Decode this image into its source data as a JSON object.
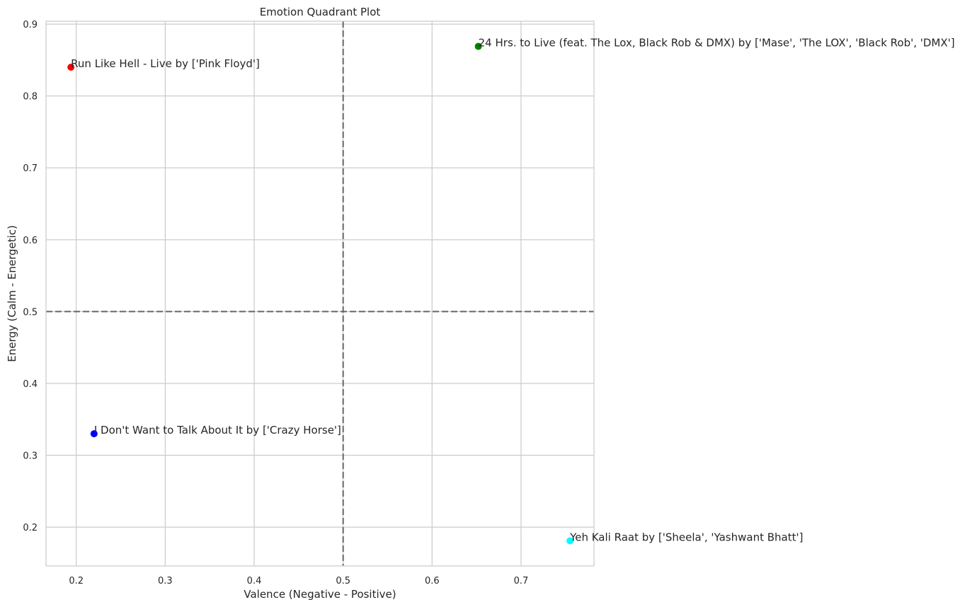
{
  "chart_data": {
    "type": "scatter",
    "title": "Emotion Quadrant Plot",
    "xlabel": "Valence (Negative - Positive)",
    "ylabel": "Energy (Calm - Energetic)",
    "xlim": [
      0.166,
      0.782
    ],
    "ylim": [
      0.146,
      0.904
    ],
    "xticks": [
      0.2,
      0.3,
      0.4,
      0.5,
      0.6,
      0.7
    ],
    "yticks": [
      0.2,
      0.3,
      0.4,
      0.5,
      0.6,
      0.7,
      0.8,
      0.9
    ],
    "grid": true,
    "reference_lines": {
      "x": 0.5,
      "y": 0.5,
      "style": "dashed",
      "color": "#666666"
    },
    "points": [
      {
        "x": 0.194,
        "y": 0.84,
        "color": "#ff0000",
        "label": "Run Like Hell - Live by ['Pink Floyd']"
      },
      {
        "x": 0.652,
        "y": 0.869,
        "color": "#008000",
        "label": "24 Hrs. to Live (feat. The Lox, Black Rob & DMX) by ['Mase', 'The LOX', 'Black Rob', 'DMX']"
      },
      {
        "x": 0.22,
        "y": 0.33,
        "color": "#0000ff",
        "label": "I Don't Want to Talk About It by ['Crazy Horse']"
      },
      {
        "x": 0.755,
        "y": 0.181,
        "color": "#00ffff",
        "label": "Yeh Kali Raat by ['Sheela', 'Yashwant Bhatt']"
      }
    ]
  }
}
